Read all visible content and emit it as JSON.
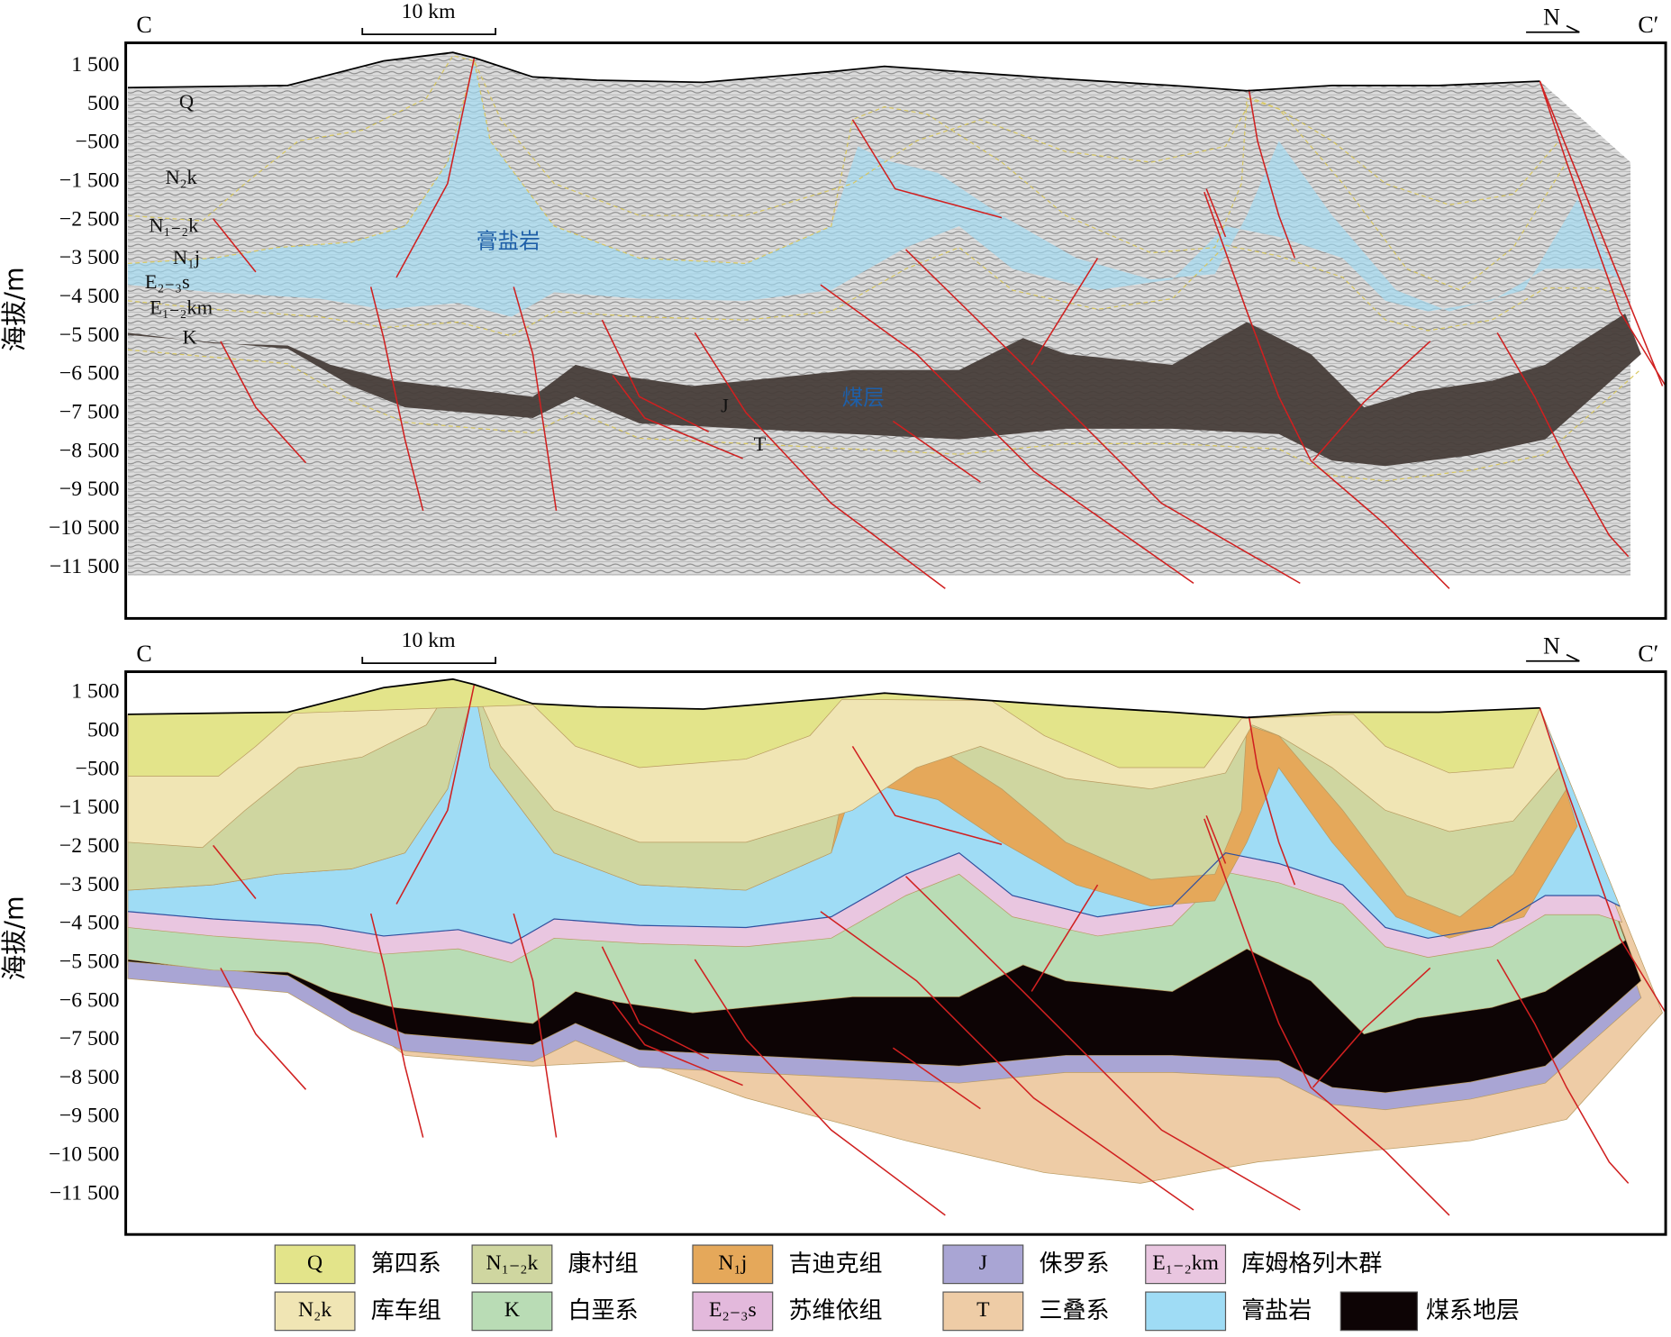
{
  "panels": [
    {
      "left_label": "C",
      "right_label": "C′",
      "scale": "10 km",
      "north": "N",
      "y_axis_label": "海拔/m",
      "yticks": [
        "1 500",
        "500",
        "−500",
        "−1 500",
        "−2 500",
        "−3 500",
        "−4 500",
        "−5 500",
        "−6 500",
        "−7 500",
        "−8 500",
        "−9 500",
        "−10 500",
        "−11 500"
      ],
      "annotations": [
        "Q",
        "N₂k",
        "N₁₋₂k",
        "N₁j",
        "E₂₋₃s",
        "E₁₋₂km",
        "K",
        "膏盐岩",
        "煤层",
        "J",
        "T"
      ]
    },
    {
      "left_label": "C",
      "right_label": "C′",
      "scale": "10 km",
      "north": "N",
      "y_axis_label": "海拔/m",
      "yticks": [
        "1 500",
        "500",
        "−500",
        "−1 500",
        "−2 500",
        "−3 500",
        "−4 500",
        "−5 500",
        "−6 500",
        "−7 500",
        "−8 500",
        "−9 500",
        "−10 500",
        "−11 500"
      ]
    }
  ],
  "legend": [
    {
      "symbol": "Q",
      "label": "第四系",
      "color": "#e3e48a"
    },
    {
      "symbol": "N₁₋₂k",
      "label": "康村组",
      "color": "#cfd6a0"
    },
    {
      "symbol": "N₁j",
      "label": "吉迪克组",
      "color": "#e5a85a"
    },
    {
      "symbol": "J",
      "label": "侏罗系",
      "color": "#a9a5d4"
    },
    {
      "symbol": "E₁₋₂km",
      "label": "库姆格列木群",
      "color": "#e9c6e0"
    },
    {
      "symbol": "N₂k",
      "label": "库车组",
      "color": "#f0e5b4"
    },
    {
      "symbol": "K",
      "label": "白垩系",
      "color": "#b9dcb5"
    },
    {
      "symbol": "E₂₋₃s",
      "label": "苏维依组",
      "color": "#e3b9dc"
    },
    {
      "symbol": "T",
      "label": "三叠系",
      "color": "#eecca6"
    },
    {
      "label": "膏盐岩",
      "color": "#9fdcf5"
    },
    {
      "label": "煤系地层",
      "color": "#0d0405"
    }
  ]
}
